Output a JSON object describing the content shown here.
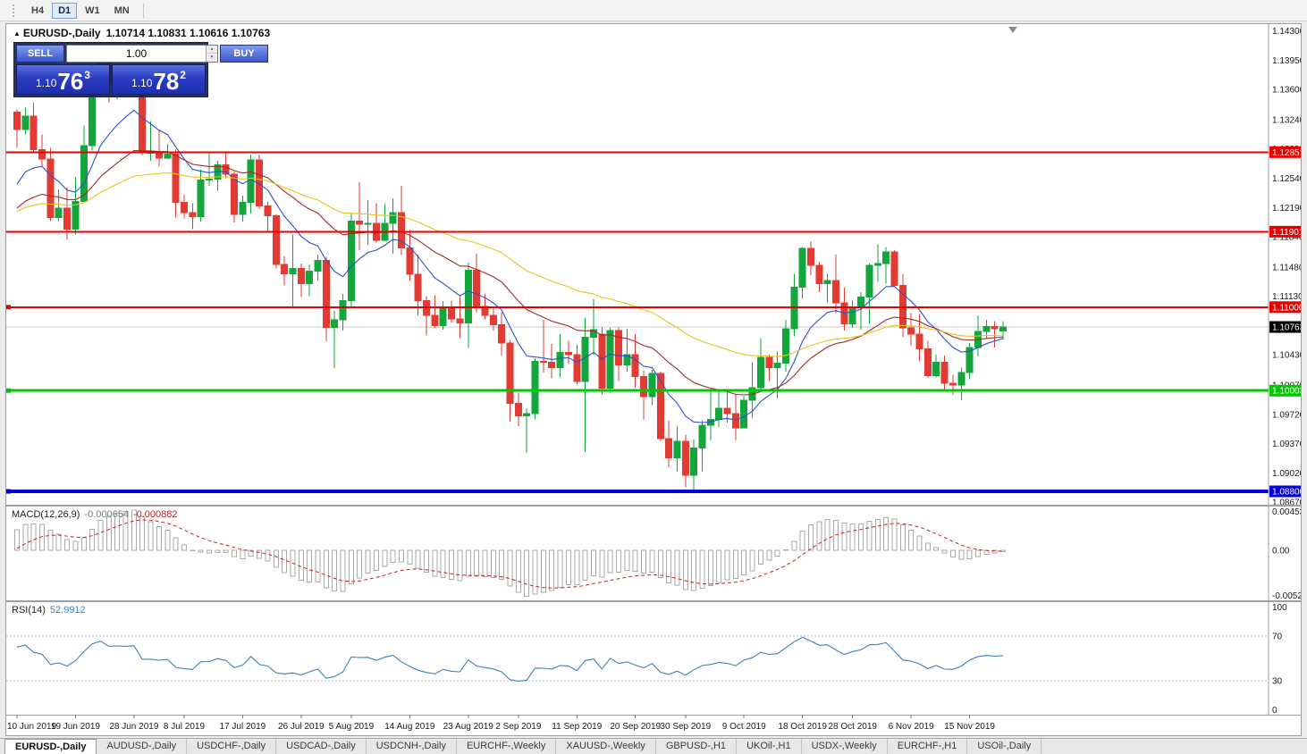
{
  "toolbar": {
    "periods": [
      {
        "label": "H4",
        "active": false
      },
      {
        "label": "D1",
        "active": true
      },
      {
        "label": "W1",
        "active": false
      },
      {
        "label": "MN",
        "active": false
      }
    ]
  },
  "chart_title": {
    "marker": "▲",
    "symbol_period": "EURUSD-,Daily",
    "ohlc": "1.10714 1.10831 1.10616 1.10763"
  },
  "trade_panel": {
    "sell_label": "SELL",
    "buy_label": "BUY",
    "volume": "1.00",
    "spinner_up": "▲",
    "spinner_down": "▼",
    "sell_price": {
      "prefix": "1.10",
      "big": "76",
      "sup": "3"
    },
    "buy_price": {
      "prefix": "1.10",
      "big": "78",
      "sup": "2"
    }
  },
  "tabs": [
    {
      "label": "EURUSD-,Daily",
      "active": true
    },
    {
      "label": "AUDUSD-,Daily",
      "active": false
    },
    {
      "label": "USDCHF-,Daily",
      "active": false
    },
    {
      "label": "USDCAD-,Daily",
      "active": false
    },
    {
      "label": "USDCNH-,Daily",
      "active": false
    },
    {
      "label": "EURCHF-,Weekly",
      "active": false
    },
    {
      "label": "XAUUSD-,Weekly",
      "active": false
    },
    {
      "label": "GBPUSD-,H1",
      "active": false
    },
    {
      "label": "UKOil-,H1",
      "active": false
    },
    {
      "label": "USDX-,Weekly",
      "active": false
    },
    {
      "label": "EURCHF-,H1",
      "active": false
    },
    {
      "label": "USOil-,Daily",
      "active": false
    }
  ],
  "chart_data": {
    "type": "candlestick",
    "symbol": "EURUSD-",
    "period": "Daily",
    "bid_price": "1.10763",
    "colors": {
      "up": "#12a63c",
      "down": "#e23b34",
      "bid_line": "#c8c8c8",
      "axis_text": "#1a1a1a"
    },
    "price_axis": {
      "min": 1.0864,
      "max": 1.1438,
      "ticks": [
        "1.14300",
        "1.13950",
        "1.13600",
        "1.13240",
        "1.12890",
        "1.12540",
        "1.12190",
        "1.11840",
        "1.11480",
        "1.11130",
        "1.10780",
        "1.10430",
        "1.10070",
        "1.09720",
        "1.09370",
        "1.09020",
        "1.08670"
      ]
    },
    "x_axis": {
      "labels": [
        {
          "text": "10 Jun 2019",
          "index": 0
        },
        {
          "text": "19 Jun 2019",
          "index": 7
        },
        {
          "text": "28 Jun 2019",
          "index": 14
        },
        {
          "text": "8 Jul 2019",
          "index": 20
        },
        {
          "text": "17 Jul 2019",
          "index": 27
        },
        {
          "text": "26 Jul 2019",
          "index": 34
        },
        {
          "text": "5 Aug 2019",
          "index": 40
        },
        {
          "text": "14 Aug 2019",
          "index": 47
        },
        {
          "text": "23 Aug 2019",
          "index": 54
        },
        {
          "text": "2 Sep 2019",
          "index": 60
        },
        {
          "text": "11 Sep 2019",
          "index": 67
        },
        {
          "text": "20 Sep 2019",
          "index": 74
        },
        {
          "text": "30 Sep 2019",
          "index": 80
        },
        {
          "text": "9 Oct 2019",
          "index": 87
        },
        {
          "text": "18 Oct 2019",
          "index": 94
        },
        {
          "text": "28 Oct 2019",
          "index": 100
        },
        {
          "text": "6 Nov 2019",
          "index": 107
        },
        {
          "text": "15 Nov 2019",
          "index": 114
        }
      ]
    },
    "hlines": [
      {
        "name": "resistance-1",
        "price": 1.12851,
        "label": "1.12851",
        "color": "#e80000",
        "width": 2,
        "handles": false
      },
      {
        "name": "resistance-2",
        "price": 1.11901,
        "label": "1.11901",
        "color": "#e80000",
        "width": 2,
        "handles": false
      },
      {
        "name": "resistance-3",
        "price": 1.11,
        "label": "1.11000",
        "color": "#e80000",
        "width": 2,
        "handles": true
      },
      {
        "name": "support-green",
        "price": 1.10003,
        "label": "1.10003",
        "color": "#00c800",
        "width": 3,
        "handles": true
      },
      {
        "name": "support-blue",
        "price": 1.088,
        "label": "1.08800",
        "color": "#0000d8",
        "width": 4,
        "handles": true
      }
    ],
    "moving_averages": [
      {
        "name": "ma-fast-line",
        "period": 10,
        "color": "#2c4fd0"
      },
      {
        "name": "ma-medium-line",
        "period": 25,
        "color": "#a52828"
      },
      {
        "name": "ma-slow-line",
        "period": 50,
        "color": "#e7c51a"
      }
    ],
    "macd": {
      "label": "MACD(12,26,9)",
      "value": "-0.000654",
      "signal_value": "-0.000882",
      "fast": 12,
      "slow": 26,
      "signal": 9,
      "range": [
        -0.005205,
        0.004536
      ],
      "axis_ticks": [
        "0.004536",
        "0.00",
        "-0.005205"
      ],
      "histogram_color": "#a9a9a9",
      "signal_color": "#cc2020"
    },
    "rsi": {
      "label": "RSI(14)",
      "value": "52.9912",
      "period": 14,
      "levels": [
        70,
        30
      ],
      "axis_ticks": [
        "100",
        "70",
        "30",
        "0"
      ],
      "color": "#3e7fc1"
    },
    "warmup_closes": [
      1.1224,
      1.1205,
      1.1207,
      1.1179,
      1.1176,
      1.1156,
      1.1167,
      1.1162,
      1.1151,
      1.1134,
      1.1193,
      1.1162,
      1.1133,
      1.1129,
      1.1168,
      1.1241,
      1.1253,
      1.1222,
      1.1276,
      1.1333
    ],
    "candles": [
      [
        1.1333,
        1.1336,
        1.129,
        1.1312
      ],
      [
        1.1312,
        1.1338,
        1.1306,
        1.1328
      ],
      [
        1.1328,
        1.1344,
        1.1284,
        1.1288
      ],
      [
        1.1288,
        1.1306,
        1.1268,
        1.1277
      ],
      [
        1.1277,
        1.129,
        1.1203,
        1.1207
      ],
      [
        1.1207,
        1.124,
        1.1203,
        1.1218
      ],
      [
        1.1218,
        1.1243,
        1.1181,
        1.1193
      ],
      [
        1.1193,
        1.1255,
        1.1187,
        1.1226
      ],
      [
        1.1226,
        1.1317,
        1.1226,
        1.1293
      ],
      [
        1.1293,
        1.1378,
        1.1287,
        1.1369
      ],
      [
        1.1369,
        1.1403,
        1.1363,
        1.1399
      ],
      [
        1.1399,
        1.1412,
        1.1344,
        1.1366
      ],
      [
        1.1366,
        1.1391,
        1.1348,
        1.137
      ],
      [
        1.137,
        1.1388,
        1.136,
        1.1368
      ],
      [
        1.1368,
        1.1394,
        1.1351,
        1.1373
      ],
      [
        1.1364,
        1.1368,
        1.1281,
        1.1285
      ],
      [
        1.1285,
        1.1322,
        1.1275,
        1.1285
      ],
      [
        1.1285,
        1.1312,
        1.1268,
        1.1278
      ],
      [
        1.1278,
        1.1295,
        1.1277,
        1.1283
      ],
      [
        1.1283,
        1.1288,
        1.1207,
        1.1225
      ],
      [
        1.1225,
        1.1234,
        1.1206,
        1.1213
      ],
      [
        1.1213,
        1.1224,
        1.1193,
        1.1208
      ],
      [
        1.1208,
        1.1264,
        1.1202,
        1.1252
      ],
      [
        1.1252,
        1.1286,
        1.1245,
        1.1253
      ],
      [
        1.1253,
        1.1275,
        1.1239,
        1.127
      ],
      [
        1.127,
        1.1284,
        1.1254,
        1.1259
      ],
      [
        1.1259,
        1.1262,
        1.1201,
        1.1211
      ],
      [
        1.1211,
        1.1233,
        1.1202,
        1.1225
      ],
      [
        1.1225,
        1.1282,
        1.1212,
        1.1276
      ],
      [
        1.1276,
        1.1282,
        1.1217,
        1.1221
      ],
      [
        1.1221,
        1.1226,
        1.119,
        1.1209
      ],
      [
        1.1209,
        1.1211,
        1.1146,
        1.1151
      ],
      [
        1.1151,
        1.1161,
        1.1126,
        1.114
      ],
      [
        1.114,
        1.1187,
        1.1101,
        1.1146
      ],
      [
        1.1146,
        1.1152,
        1.1112,
        1.1128
      ],
      [
        1.1128,
        1.1151,
        1.1113,
        1.1143
      ],
      [
        1.1143,
        1.1162,
        1.1131,
        1.1156
      ],
      [
        1.1156,
        1.116,
        1.1059,
        1.1076
      ],
      [
        1.1076,
        1.1096,
        1.1027,
        1.1085
      ],
      [
        1.1085,
        1.1116,
        1.1072,
        1.1108
      ],
      [
        1.1108,
        1.1213,
        1.1101,
        1.1203
      ],
      [
        1.1203,
        1.1249,
        1.1168,
        1.1199
      ],
      [
        1.1199,
        1.1228,
        1.1174,
        1.12
      ],
      [
        1.12,
        1.1224,
        1.1177,
        1.118
      ],
      [
        1.118,
        1.1223,
        1.1178,
        1.12
      ],
      [
        1.12,
        1.123,
        1.1164,
        1.1213
      ],
      [
        1.1213,
        1.1245,
        1.1162,
        1.1171
      ],
      [
        1.1171,
        1.1192,
        1.1131,
        1.1139
      ],
      [
        1.1139,
        1.1163,
        1.109,
        1.1108
      ],
      [
        1.1108,
        1.1113,
        1.1066,
        1.109
      ],
      [
        1.109,
        1.1114,
        1.1075,
        1.1078
      ],
      [
        1.1078,
        1.1107,
        1.1073,
        1.11
      ],
      [
        1.11,
        1.1108,
        1.1081,
        1.1086
      ],
      [
        1.1086,
        1.1113,
        1.1063,
        1.1081
      ],
      [
        1.1081,
        1.1153,
        1.1051,
        1.1144
      ],
      [
        1.1144,
        1.1164,
        1.1094,
        1.1101
      ],
      [
        1.1101,
        1.1116,
        1.1086,
        1.109
      ],
      [
        1.109,
        1.1098,
        1.1072,
        1.1079
      ],
      [
        1.1079,
        1.1094,
        1.1042,
        1.1057
      ],
      [
        1.1057,
        1.1061,
        1.0963,
        1.0985
      ],
      [
        1.0985,
        1.0998,
        1.0958,
        1.097
      ],
      [
        1.097,
        1.0979,
        1.0926,
        1.0973
      ],
      [
        1.0973,
        1.1039,
        1.0966,
        1.1035
      ],
      [
        1.1035,
        1.1085,
        1.1022,
        1.1034
      ],
      [
        1.1034,
        1.1056,
        1.1015,
        1.1028
      ],
      [
        1.1028,
        1.1068,
        1.1016,
        1.1046
      ],
      [
        1.1046,
        1.106,
        1.1032,
        1.1043
      ],
      [
        1.1043,
        1.1055,
        1.1008,
        1.1011
      ],
      [
        1.1011,
        1.1087,
        1.0927,
        1.1064
      ],
      [
        1.1064,
        1.111,
        1.1043,
        1.1073
      ],
      [
        1.1068,
        1.1076,
        1.0996,
        1.1003
      ],
      [
        1.1003,
        1.1075,
        1.0998,
        1.1072
      ],
      [
        1.1072,
        1.1076,
        1.1012,
        1.1031
      ],
      [
        1.1031,
        1.1074,
        1.1023,
        1.1043
      ],
      [
        1.1043,
        1.1068,
        1.1004,
        1.1017
      ],
      [
        1.1017,
        1.1024,
        1.0966,
        1.0993
      ],
      [
        1.0993,
        1.1025,
        1.0983,
        1.1021
      ],
      [
        1.1021,
        1.1023,
        1.094,
        1.0943
      ],
      [
        1.0943,
        1.0965,
        1.0909,
        1.092
      ],
      [
        1.092,
        1.0958,
        1.0904,
        1.094
      ],
      [
        1.094,
        1.0948,
        1.0885,
        1.0899
      ],
      [
        1.0899,
        1.0942,
        1.0879,
        1.0932
      ],
      [
        1.0932,
        1.0965,
        1.0904,
        1.0959
      ],
      [
        1.0959,
        1.0999,
        1.0941,
        1.0966
      ],
      [
        1.0966,
        1.0999,
        1.0957,
        1.0979
      ],
      [
        1.0979,
        1.1,
        1.0962,
        1.0973
      ],
      [
        1.0973,
        1.0996,
        1.0941,
        1.0956
      ],
      [
        1.0956,
        1.0994,
        1.0955,
        1.0989
      ],
      [
        1.0989,
        1.1034,
        1.0968,
        1.1004
      ],
      [
        1.1004,
        1.1063,
        1.1002,
        1.104
      ],
      [
        1.104,
        1.1043,
        1.1012,
        1.1028
      ],
      [
        1.1028,
        1.1047,
        1.0991,
        1.1033
      ],
      [
        1.1033,
        1.1085,
        1.1023,
        1.1074
      ],
      [
        1.1074,
        1.114,
        1.1065,
        1.1124
      ],
      [
        1.1124,
        1.1172,
        1.111,
        1.117
      ],
      [
        1.117,
        1.1179,
        1.1138,
        1.115
      ],
      [
        1.115,
        1.1154,
        1.1118,
        1.1128
      ],
      [
        1.1128,
        1.114,
        1.1105,
        1.1132
      ],
      [
        1.1132,
        1.1163,
        1.1093,
        1.1105
      ],
      [
        1.1105,
        1.1123,
        1.1072,
        1.108
      ],
      [
        1.108,
        1.1108,
        1.1075,
        1.11
      ],
      [
        1.11,
        1.1118,
        1.1073,
        1.1112
      ],
      [
        1.1112,
        1.1152,
        1.108,
        1.115
      ],
      [
        1.115,
        1.1175,
        1.113,
        1.1152
      ],
      [
        1.1152,
        1.1172,
        1.1128,
        1.1166
      ],
      [
        1.1166,
        1.1168,
        1.1125,
        1.1126
      ],
      [
        1.1126,
        1.114,
        1.1064,
        1.1075
      ],
      [
        1.1075,
        1.1093,
        1.1054,
        1.1068
      ],
      [
        1.1068,
        1.1092,
        1.1035,
        1.105
      ],
      [
        1.105,
        1.106,
        1.1016,
        1.1018
      ],
      [
        1.1018,
        1.1043,
        1.1016,
        1.1034
      ],
      [
        1.1034,
        1.1042,
        1.1002,
        1.1009
      ],
      [
        1.1009,
        1.1019,
        1.0995,
        1.1007
      ],
      [
        1.1007,
        1.1028,
        1.0989,
        1.1022
      ],
      [
        1.1022,
        1.1057,
        1.1014,
        1.1052
      ],
      [
        1.1052,
        1.109,
        1.1041,
        1.1071
      ],
      [
        1.1071,
        1.1085,
        1.1063,
        1.1077
      ],
      [
        1.1077,
        1.1083,
        1.1052,
        1.1074
      ],
      [
        1.10714,
        1.10831,
        1.10616,
        1.10763
      ]
    ]
  }
}
